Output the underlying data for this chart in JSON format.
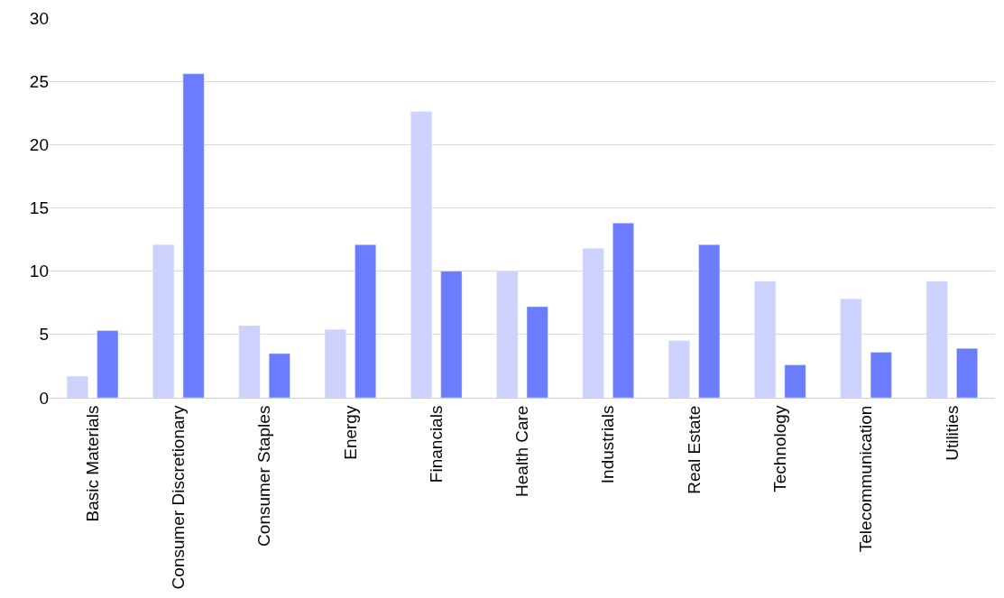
{
  "chart_data": {
    "type": "bar",
    "categories": [
      "Basic Materials",
      "Consumer Discretionary",
      "Consumer Staples",
      "Energy",
      "Financials",
      "Health Care",
      "Industrials",
      "Real Estate",
      "Technology",
      "Telecommunication",
      "Utilities"
    ],
    "series": [
      {
        "color": "#ccd1fe",
        "values": [
          1.7,
          12.1,
          5.7,
          5.4,
          22.6,
          10.0,
          11.8,
          4.5,
          9.2,
          7.8,
          9.2
        ]
      },
      {
        "color": "#6b7cff",
        "values": [
          5.3,
          25.6,
          3.5,
          12.1,
          10.0,
          7.2,
          13.8,
          12.1,
          2.6,
          3.6,
          3.9
        ]
      }
    ],
    "ylim": [
      0,
      30
    ],
    "yticks": [
      0,
      5,
      10,
      15,
      20,
      25,
      30
    ],
    "grid": "y"
  }
}
